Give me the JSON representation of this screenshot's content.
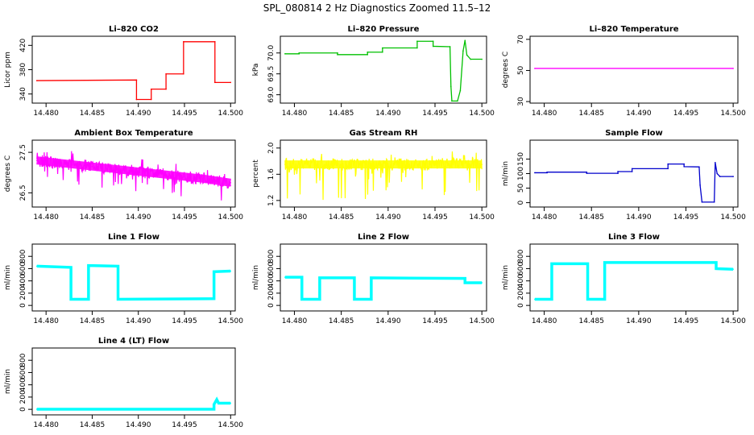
{
  "main_title": "SPL_080814  2 Hz Diagnostics Zoomed 11.5–12",
  "x_ticks": [
    "14.480",
    "14.485",
    "14.490",
    "14.495",
    "14.500"
  ],
  "chart_data": [
    {
      "type": "line",
      "title": "Li–820 CO2",
      "xlabel": "",
      "ylabel": "Licor ppm",
      "color": "#ff0000",
      "xlim": [
        14.4785,
        14.5005
      ],
      "ylim": [
        325,
        435
      ],
      "yticks": [
        "340",
        "380",
        "420"
      ],
      "x": [
        14.479,
        14.4898,
        14.4898,
        14.4914,
        14.4914,
        14.493,
        14.493,
        14.4949,
        14.4949,
        14.4983,
        14.4983,
        14.5
      ],
      "y": [
        362,
        363,
        331,
        331,
        348,
        348,
        373,
        373,
        426,
        426,
        359,
        359
      ]
    },
    {
      "type": "line",
      "title": "Li–820 Pressure",
      "xlabel": "",
      "ylabel": "kPa",
      "color": "#00c000",
      "xlim": [
        14.4785,
        14.5005
      ],
      "ylim": [
        68.8,
        70.4
      ],
      "yticks": [
        "69.0",
        "69.5",
        "70.0"
      ],
      "x": [
        14.479,
        14.4805,
        14.4805,
        14.4846,
        14.4846,
        14.4878,
        14.4878,
        14.4894,
        14.4894,
        14.4931,
        14.4931,
        14.4948,
        14.4948,
        14.4966,
        14.4967,
        14.4968,
        14.4974,
        14.4977,
        14.498,
        14.4982,
        14.4984,
        14.4988,
        14.5
      ],
      "y": [
        69.98,
        69.98,
        70.0,
        70.0,
        69.96,
        69.96,
        70.02,
        70.02,
        70.12,
        70.12,
        70.28,
        70.28,
        70.16,
        70.15,
        69.2,
        68.85,
        68.85,
        69.1,
        70.05,
        70.3,
        69.95,
        69.85,
        69.85
      ]
    },
    {
      "type": "line",
      "title": "Li–820 Temperature",
      "xlabel": "",
      "ylabel": "degrees C",
      "color": "#ff00ff",
      "xlim": [
        14.4785,
        14.5005
      ],
      "ylim": [
        29,
        72
      ],
      "yticks": [
        "30",
        "50",
        "70"
      ],
      "x": [
        14.479,
        14.5
      ],
      "y": [
        51.3,
        51.3
      ]
    },
    {
      "type": "line",
      "title": "Ambient Box Temperature",
      "xlabel": "",
      "ylabel": "degrees C",
      "color": "#ff00ff",
      "xlim": [
        14.4785,
        14.5005
      ],
      "ylim": [
        26.15,
        27.8
      ],
      "yticks": [
        "26.5",
        "27.5"
      ],
      "x": [
        14.479,
        14.481,
        14.483,
        14.485,
        14.487,
        14.489,
        14.491,
        14.493,
        14.495,
        14.497,
        14.5
      ],
      "y": [
        27.3,
        27.25,
        27.2,
        27.15,
        27.1,
        27.05,
        27.0,
        26.95,
        26.9,
        26.85,
        26.75
      ]
    },
    {
      "type": "line",
      "title": "Gas Stream RH",
      "xlabel": "",
      "ylabel": "percent",
      "color": "#ffff00",
      "xlim": [
        14.4785,
        14.5005
      ],
      "ylim": [
        1.1,
        2.12
      ],
      "yticks": [
        "1.2",
        "1.6",
        "2.0"
      ],
      "x": [
        14.479,
        14.5
      ],
      "y": [
        1.75,
        1.75
      ]
    },
    {
      "type": "line",
      "title": "Sample Flow",
      "xlabel": "",
      "ylabel": "ml/min",
      "color": "#0000cc",
      "xlim": [
        14.4785,
        14.5005
      ],
      "ylim": [
        -15,
        215
      ],
      "yticks": [
        "0",
        "50",
        "100",
        "150"
      ],
      "x": [
        14.479,
        14.4803,
        14.4803,
        14.4845,
        14.4845,
        14.4878,
        14.4878,
        14.4893,
        14.4893,
        14.4931,
        14.4931,
        14.4948,
        14.4948,
        14.4964,
        14.4965,
        14.4967,
        14.498,
        14.4981,
        14.4983,
        14.4986,
        14.5
      ],
      "y": [
        103,
        103,
        105,
        105,
        101,
        101,
        107,
        107,
        117,
        117,
        133,
        133,
        124,
        123,
        60,
        2,
        2,
        138,
        100,
        90,
        90
      ]
    },
    {
      "type": "line",
      "title": "Line 1 Flow",
      "xlabel": "",
      "ylabel": "ml/min",
      "color": "#00ffff",
      "xlim": [
        14.4785,
        14.5005
      ],
      "ylim": [
        -90,
        1000
      ],
      "yticks": [
        "0",
        "200",
        "400",
        "600",
        "800"
      ],
      "x": [
        14.479,
        14.4827,
        14.4827,
        14.4846,
        14.4846,
        14.4878,
        14.4878,
        14.4982,
        14.4982,
        14.5
      ],
      "y": [
        640,
        620,
        100,
        100,
        650,
        640,
        100,
        110,
        550,
        560
      ]
    },
    {
      "type": "line",
      "title": "Line 2 Flow",
      "xlabel": "",
      "ylabel": "ml/min",
      "color": "#00ffff",
      "xlim": [
        14.4785,
        14.5005
      ],
      "ylim": [
        -90,
        1000
      ],
      "yticks": [
        "0",
        "200",
        "400",
        "600",
        "800"
      ],
      "x": [
        14.479,
        14.4808,
        14.4808,
        14.4827,
        14.4827,
        14.4864,
        14.4864,
        14.4882,
        14.4882,
        14.4982,
        14.4982,
        14.5
      ],
      "y": [
        460,
        460,
        100,
        100,
        450,
        450,
        100,
        100,
        450,
        440,
        370,
        370
      ]
    },
    {
      "type": "line",
      "title": "Line 3 Flow",
      "xlabel": "",
      "ylabel": "ml/min",
      "color": "#00ffff",
      "xlim": [
        14.4785,
        14.5005
      ],
      "ylim": [
        -90,
        1000
      ],
      "yticks": [
        "0",
        "200",
        "400",
        "600",
        "800"
      ],
      "x": [
        14.479,
        14.4808,
        14.4808,
        14.4846,
        14.4846,
        14.4864,
        14.4864,
        14.4982,
        14.4982,
        14.5
      ],
      "y": [
        100,
        100,
        680,
        680,
        100,
        100,
        700,
        700,
        600,
        590
      ]
    },
    {
      "type": "line",
      "title": "Line 4 (LT) Flow",
      "xlabel": "",
      "ylabel": "ml/min",
      "color": "#00ffff",
      "xlim": [
        14.4785,
        14.5005
      ],
      "ylim": [
        -90,
        1000
      ],
      "yticks": [
        "0",
        "200",
        "400",
        "600",
        "800"
      ],
      "x": [
        14.479,
        14.4982,
        14.4982,
        14.4985,
        14.4987,
        14.5
      ],
      "y": [
        2,
        2,
        80,
        160,
        100,
        100
      ]
    }
  ]
}
